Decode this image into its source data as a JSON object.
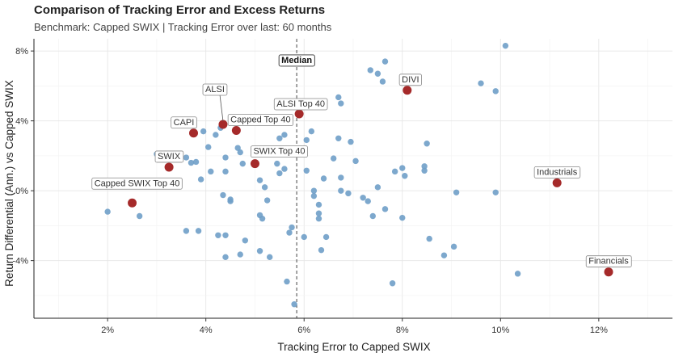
{
  "chart_data": {
    "type": "scatter",
    "title": "Comparison of Tracking Error and Excess Returns",
    "subtitle": "Benchmark: Capped SWIX | Tracking Error over last: 60 months",
    "xlabel": "Tracking Error to Capped SWIX",
    "ylabel": "Return Differential (Ann.) vs Capped SWIX",
    "xlim": [
      0.5,
      13.5
    ],
    "ylim": [
      -7.3,
      8.7
    ],
    "x_ticks": [
      {
        "value": 2,
        "label": "2%"
      },
      {
        "value": 4,
        "label": "4%"
      },
      {
        "value": 6,
        "label": "6%"
      },
      {
        "value": 8,
        "label": "8%"
      },
      {
        "value": 10,
        "label": "10%"
      },
      {
        "value": 12,
        "label": "12%"
      }
    ],
    "y_ticks": [
      {
        "value": -4,
        "label": "-4%"
      },
      {
        "value": 0,
        "label": "0%"
      },
      {
        "value": 4,
        "label": "4%"
      },
      {
        "value": 8,
        "label": "8%"
      }
    ],
    "median": {
      "x": 5.85,
      "label": "Median"
    },
    "grid": true,
    "colors": {
      "others": "#6f9fc8",
      "highlight": "#a52a2a",
      "median_line": "#555555"
    },
    "highlighted": [
      {
        "name": "Capped SWIX Top 40",
        "x": 2.5,
        "y": -0.7
      },
      {
        "name": "SWIX",
        "x": 3.25,
        "y": 1.35
      },
      {
        "name": "CAPI",
        "x": 3.75,
        "y": 3.3
      },
      {
        "name": "ALSI",
        "x": 4.35,
        "y": 3.8
      },
      {
        "name": "Capped Top 40",
        "x": 4.62,
        "y": 3.45
      },
      {
        "name": "SWIX Top 40",
        "x": 5.0,
        "y": 1.55
      },
      {
        "name": "ALSI Top 40",
        "x": 5.9,
        "y": 4.4
      },
      {
        "name": "DIVI",
        "x": 8.1,
        "y": 5.75
      },
      {
        "name": "Industrials",
        "x": 11.15,
        "y": 0.45
      },
      {
        "name": "Financials",
        "x": 12.2,
        "y": -4.65
      }
    ],
    "others": [
      [
        2.0,
        -1.2
      ],
      [
        2.65,
        -1.45
      ],
      [
        3.0,
        2.1
      ],
      [
        3.15,
        0.3
      ],
      [
        3.6,
        1.9
      ],
      [
        3.7,
        1.6
      ],
      [
        3.8,
        1.65
      ],
      [
        3.95,
        3.4
      ],
      [
        3.9,
        0.65
      ],
      [
        3.6,
        -2.3
      ],
      [
        3.85,
        -2.3
      ],
      [
        4.05,
        2.5
      ],
      [
        4.2,
        3.2
      ],
      [
        4.3,
        3.6
      ],
      [
        4.1,
        1.1
      ],
      [
        4.4,
        1.9
      ],
      [
        4.4,
        1.1
      ],
      [
        4.35,
        -0.25
      ],
      [
        4.5,
        -0.5
      ],
      [
        4.5,
        -0.6
      ],
      [
        4.25,
        -2.55
      ],
      [
        4.4,
        -2.55
      ],
      [
        4.4,
        -3.8
      ],
      [
        4.7,
        -3.65
      ],
      [
        4.8,
        -2.85
      ],
      [
        4.65,
        2.45
      ],
      [
        4.7,
        2.2
      ],
      [
        4.75,
        1.55
      ],
      [
        5.0,
        4.1
      ],
      [
        5.1,
        0.6
      ],
      [
        5.2,
        0.2
      ],
      [
        5.25,
        -0.55
      ],
      [
        5.1,
        -1.4
      ],
      [
        5.15,
        -1.6
      ],
      [
        5.1,
        -3.45
      ],
      [
        5.3,
        -3.8
      ],
      [
        5.5,
        1.0
      ],
      [
        5.45,
        1.55
      ],
      [
        5.6,
        1.25
      ],
      [
        5.5,
        3.0
      ],
      [
        5.6,
        3.2
      ],
      [
        5.65,
        -5.2
      ],
      [
        5.75,
        -2.1
      ],
      [
        5.8,
        -6.5
      ],
      [
        5.7,
        -2.4
      ],
      [
        6.05,
        1.15
      ],
      [
        6.05,
        2.9
      ],
      [
        6.15,
        3.4
      ],
      [
        6.0,
        -2.65
      ],
      [
        6.2,
        0.0
      ],
      [
        6.2,
        -0.3
      ],
      [
        6.3,
        -0.8
      ],
      [
        6.3,
        -1.3
      ],
      [
        6.3,
        -1.6
      ],
      [
        6.4,
        0.7
      ],
      [
        6.45,
        -2.65
      ],
      [
        6.35,
        -3.4
      ],
      [
        6.6,
        1.85
      ],
      [
        6.7,
        5.35
      ],
      [
        6.75,
        5.0
      ],
      [
        6.7,
        3.0
      ],
      [
        6.75,
        0.75
      ],
      [
        6.75,
        0.0
      ],
      [
        6.9,
        -0.15
      ],
      [
        6.95,
        2.8
      ],
      [
        7.05,
        1.7
      ],
      [
        7.2,
        -0.4
      ],
      [
        7.3,
        -0.6
      ],
      [
        7.4,
        -1.45
      ],
      [
        7.35,
        6.9
      ],
      [
        7.5,
        6.7
      ],
      [
        7.6,
        6.25
      ],
      [
        7.65,
        7.4
      ],
      [
        7.5,
        0.2
      ],
      [
        7.65,
        -1.05
      ],
      [
        7.8,
        -5.3
      ],
      [
        7.85,
        1.1
      ],
      [
        8.0,
        -1.55
      ],
      [
        8.0,
        1.3
      ],
      [
        8.05,
        0.85
      ],
      [
        8.45,
        1.4
      ],
      [
        8.45,
        1.15
      ],
      [
        8.5,
        2.7
      ],
      [
        8.55,
        -2.75
      ],
      [
        8.85,
        -3.7
      ],
      [
        9.05,
        -3.2
      ],
      [
        9.1,
        -0.1
      ],
      [
        9.6,
        6.15
      ],
      [
        9.9,
        5.7
      ],
      [
        9.9,
        -0.1
      ],
      [
        10.1,
        8.3
      ],
      [
        10.35,
        -4.75
      ]
    ]
  }
}
